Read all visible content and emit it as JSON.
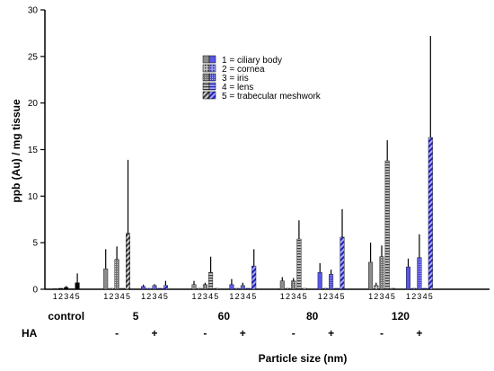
{
  "chart_data": {
    "type": "bar",
    "title": "",
    "ylabel": "ppb (Au) / mg tissue",
    "xlabel": "Particle size (nm)",
    "ylim": [
      0,
      30
    ],
    "yticks": [
      0,
      5,
      10,
      15,
      20,
      25,
      30
    ],
    "grid": false,
    "legend_placement": "top-center",
    "row_label_ha": "HA",
    "legend": [
      {
        "key": "1",
        "label": "1 = ciliary body",
        "pattern": "solid"
      },
      {
        "key": "2",
        "label": "2 = cornea",
        "pattern": "dots"
      },
      {
        "key": "3",
        "label": "3 = iris",
        "pattern": "dense-dots"
      },
      {
        "key": "4",
        "label": "4 = lens",
        "pattern": "horizontal-lines"
      },
      {
        "key": "5",
        "label": "5 = trabecular meshwork",
        "pattern": "diagonal-lines"
      }
    ],
    "colors": {
      "minus": "#8c8c8c",
      "plus": "#5858e6",
      "control": "#000000",
      "axis": "#000000"
    },
    "position_labels": [
      "1",
      "2",
      "3",
      "4",
      "5"
    ],
    "groups": [
      {
        "particle_size": "control",
        "subgroups": [
          {
            "ha": "",
            "color": "control",
            "values": [
              0.05,
              0.1,
              0.2,
              0.05,
              0.7
            ],
            "errors": [
              0.05,
              0.05,
              0.15,
              0.05,
              1.0
            ]
          }
        ]
      },
      {
        "particle_size": "5",
        "subgroups": [
          {
            "ha": "-",
            "color": "minus",
            "values": [
              2.2,
              0.1,
              3.2,
              0.1,
              6.0
            ],
            "errors": [
              2.1,
              0.1,
              1.4,
              0.1,
              7.9
            ]
          },
          {
            "ha": "+",
            "color": "plus",
            "values": [
              0.3,
              0.1,
              0.4,
              0.1,
              0.4
            ],
            "errors": [
              0.2,
              0.05,
              0.15,
              0.05,
              0.5
            ]
          }
        ]
      },
      {
        "particle_size": "60",
        "subgroups": [
          {
            "ha": "-",
            "color": "minus",
            "values": [
              0.5,
              0.1,
              0.5,
              1.8,
              0.1
            ],
            "errors": [
              0.4,
              0.1,
              0.2,
              1.7,
              0.1
            ]
          },
          {
            "ha": "+",
            "color": "plus",
            "values": [
              0.5,
              0.1,
              0.4,
              0.1,
              2.5
            ],
            "errors": [
              0.6,
              0.1,
              0.3,
              0.1,
              1.8
            ]
          }
        ]
      },
      {
        "particle_size": "80",
        "subgroups": [
          {
            "ha": "-",
            "color": "minus",
            "values": [
              0.9,
              0.1,
              0.9,
              5.4,
              0.1
            ],
            "errors": [
              0.4,
              0.1,
              0.3,
              2.0,
              0.1
            ]
          },
          {
            "ha": "+",
            "color": "plus",
            "values": [
              1.8,
              0.1,
              1.6,
              0.1,
              5.6
            ],
            "errors": [
              1.0,
              0.1,
              0.5,
              0.1,
              3.0
            ]
          }
        ]
      },
      {
        "particle_size": "120",
        "subgroups": [
          {
            "ha": "-",
            "color": "minus",
            "values": [
              2.9,
              0.4,
              3.5,
              13.8,
              0.1
            ],
            "errors": [
              2.1,
              0.3,
              1.2,
              2.2,
              0.1
            ]
          },
          {
            "ha": "+",
            "color": "plus",
            "values": [
              2.4,
              0.1,
              3.4,
              0.1,
              16.3
            ],
            "errors": [
              0.9,
              0.1,
              2.5,
              0.1,
              10.9
            ]
          }
        ]
      }
    ]
  }
}
